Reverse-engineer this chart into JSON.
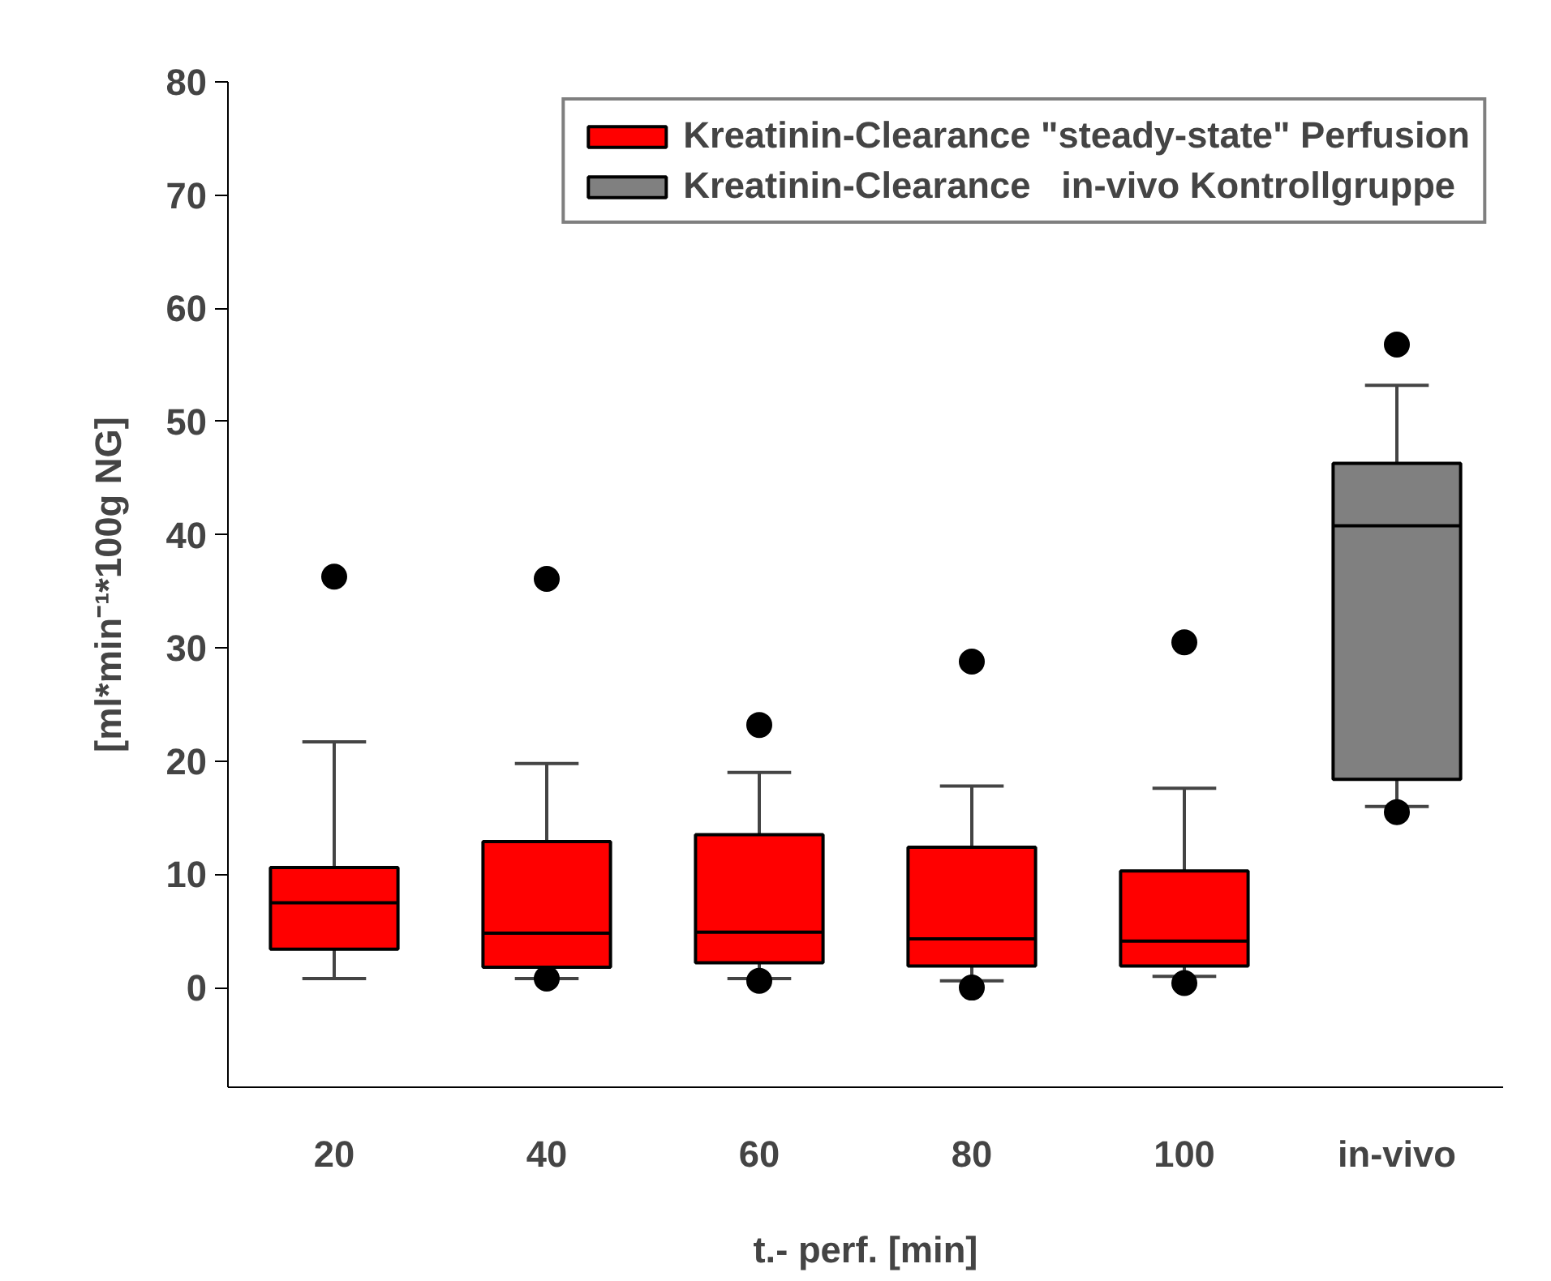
{
  "chart_data": {
    "type": "box",
    "xlabel": "t.- perf. [min]",
    "ylabel": "[ml*min⁻¹*100g NG]",
    "categories": [
      "20",
      "40",
      "60",
      "80",
      "100",
      "in-vivo"
    ],
    "series": [
      {
        "name": "Kreatinin-Clearance \"steady-state\" Perfusion",
        "color": "#ff0000",
        "boxes": [
          {
            "low": 0.8,
            "q1": 3.4,
            "median": 7.5,
            "q3": 10.6,
            "high": 21.7,
            "outliers": [
              36.3
            ]
          },
          {
            "low": 0.8,
            "q1": 1.8,
            "median": 4.8,
            "q3": 12.9,
            "high": 19.8,
            "outliers": [
              36.1,
              0.8
            ]
          },
          {
            "low": 0.8,
            "q1": 2.2,
            "median": 4.9,
            "q3": 13.5,
            "high": 19.0,
            "outliers": [
              23.2,
              0.6
            ]
          },
          {
            "low": 0.6,
            "q1": 1.9,
            "median": 4.3,
            "q3": 12.4,
            "high": 17.8,
            "outliers": [
              28.8,
              0
            ]
          },
          {
            "low": 1.0,
            "q1": 1.9,
            "median": 4.1,
            "q3": 10.3,
            "high": 17.6,
            "outliers": [
              30.5,
              0.4
            ]
          },
          null
        ]
      },
      {
        "name": "Kreatinin-Clearance   in-vivo Kontrollgruppe",
        "color": "#808080",
        "boxes": [
          null,
          null,
          null,
          null,
          null,
          {
            "low": 16.0,
            "q1": 18.4,
            "median": 40.8,
            "q3": 46.3,
            "high": 53.2,
            "outliers": [
              56.8,
              15.5
            ]
          }
        ]
      }
    ],
    "ylim": [
      -8.8,
      80
    ],
    "yticks": [
      0,
      10,
      20,
      30,
      40,
      50,
      60,
      70,
      80
    ],
    "grid": false,
    "legend": "top right"
  }
}
